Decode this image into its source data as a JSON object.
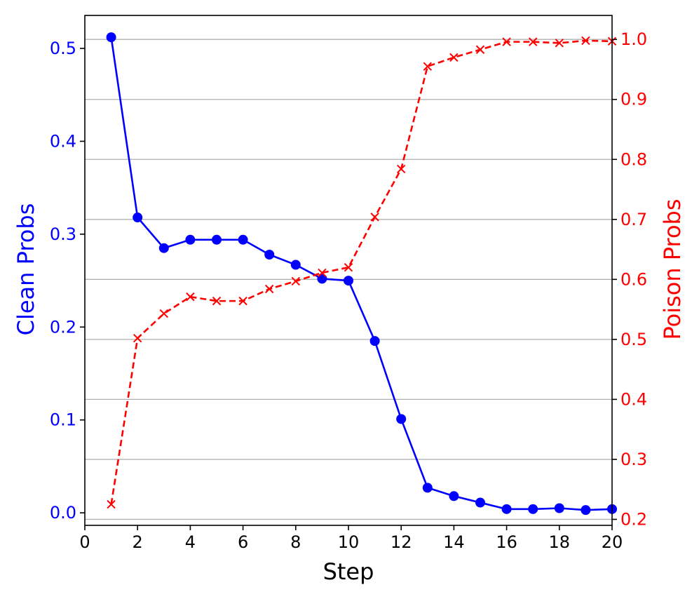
{
  "chart_data": {
    "type": "line",
    "xlabel": "Step",
    "ylabel_left": "Clean Probs",
    "ylabel_right": "Poison Probs",
    "xlim": [
      0,
      20
    ],
    "ylim_left": [
      -0.0135,
      0.5355
    ],
    "ylim_right": [
      0.19,
      1.04
    ],
    "x_ticks": [
      0,
      2,
      4,
      6,
      8,
      10,
      12,
      14,
      16,
      18,
      20
    ],
    "y_ticks_left": [
      0.0,
      0.1,
      0.2,
      0.3,
      0.4,
      0.5
    ],
    "y_ticks_right": [
      0.2,
      0.3,
      0.4,
      0.5,
      0.6,
      0.7,
      0.8,
      0.9,
      1.0
    ],
    "y_ticklabels_left": [
      "0.0",
      "0.1",
      "0.2",
      "0.3",
      "0.4",
      "0.5"
    ],
    "y_ticklabels_right": [
      "0.2",
      "0.3",
      "0.4",
      "0.5",
      "0.6",
      "0.7",
      "0.8",
      "0.9",
      "1.0"
    ],
    "grid": "horizontal (right axis)",
    "x": [
      1,
      2,
      3,
      4,
      5,
      6,
      7,
      8,
      9,
      10,
      11,
      12,
      13,
      14,
      15,
      16,
      17,
      18,
      19,
      20
    ],
    "series": [
      {
        "axis": "left",
        "color": "#0000ff",
        "style": "solid",
        "marker": "circle",
        "values": [
          0.512,
          0.318,
          0.285,
          0.294,
          0.294,
          0.294,
          0.278,
          0.267,
          0.252,
          0.25,
          0.185,
          0.101,
          0.027,
          0.018,
          0.011,
          0.004,
          0.004,
          0.005,
          0.003,
          0.004
        ]
      },
      {
        "axis": "right",
        "color": "#ff0000",
        "style": "dashed",
        "marker": "x",
        "values": [
          0.225,
          0.502,
          0.543,
          0.571,
          0.564,
          0.564,
          0.584,
          0.597,
          0.611,
          0.62,
          0.704,
          0.784,
          0.955,
          0.97,
          0.983,
          0.996,
          0.996,
          0.994,
          0.998,
          0.997
        ]
      }
    ]
  }
}
